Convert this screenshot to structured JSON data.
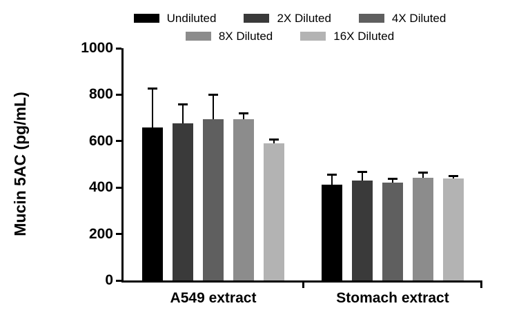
{
  "chart_data": {
    "type": "bar",
    "title": "",
    "ylabel": "Mucin 5AC (pg/mL)",
    "xlabel": "",
    "ylim": [
      0,
      1000
    ],
    "yticks": [
      0,
      200,
      400,
      600,
      800,
      1000
    ],
    "categories": [
      "A549 extract",
      "Stomach extract"
    ],
    "series": [
      {
        "name": "Undiluted",
        "color": "#000000",
        "values": [
          660,
          412
        ],
        "errors": [
          165,
          45
        ]
      },
      {
        "name": "2X Diluted",
        "color": "#3a3a3a",
        "values": [
          678,
          430
        ],
        "errors": [
          80,
          38
        ]
      },
      {
        "name": "4X Diluted",
        "color": "#5f5f5f",
        "values": [
          695,
          420
        ],
        "errors": [
          105,
          18
        ]
      },
      {
        "name": "8X Diluted",
        "color": "#8c8c8c",
        "values": [
          695,
          442
        ],
        "errors": [
          25,
          22
        ]
      },
      {
        "name": "16X Diluted",
        "color": "#b3b3b3",
        "values": [
          590,
          440
        ],
        "errors": [
          18,
          10
        ]
      }
    ],
    "legend_rows": [
      [
        0,
        1,
        2
      ],
      [
        3,
        4
      ]
    ],
    "grid": false,
    "legend_position": "top"
  }
}
